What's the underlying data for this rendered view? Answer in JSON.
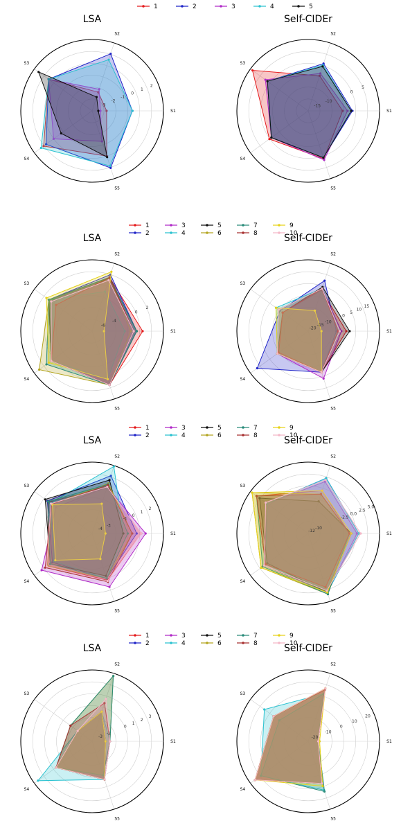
{
  "colors": [
    "#e41a1c",
    "#1f24c8",
    "#b12bc8",
    "#2bc2d0",
    "#111111",
    "#b3a520",
    "#2a8c7a",
    "#a83232",
    "#e6d21a",
    "#f4b8c8"
  ],
  "rows": [
    {
      "legend": [
        "1",
        "2",
        "3",
        "4",
        "5"
      ],
      "panels": [
        {
          "title": "LSA",
          "rticks": [
            "-3",
            "-2",
            "-1",
            "0",
            "1",
            "2"
          ],
          "rmin": -4.2,
          "rmax": 2.7,
          "center_label": "-4",
          "fill": true
        },
        {
          "title": "Self-CIDEr",
          "rticks": [
            "-15",
            "-10",
            "0",
            "5"
          ],
          "rmin": -19,
          "rmax": 10,
          "center_label": "",
          "fill": true
        }
      ]
    },
    {
      "legend": [
        "1",
        "2",
        "3",
        "4",
        "5",
        "6",
        "7",
        "8",
        "9",
        "10"
      ],
      "panels": [
        {
          "title": "LSA",
          "rticks": [
            "-6",
            "-4",
            "0",
            "2"
          ],
          "rmin": -8,
          "rmax": 4,
          "center_label": "",
          "fill": true
        },
        {
          "title": "Self-CIDEr",
          "rticks": [
            "-20",
            "-15",
            "-10",
            "0",
            "5",
            "10",
            "15"
          ],
          "rmin": -23,
          "rmax": 20,
          "center_label": "",
          "fill": true
        }
      ]
    },
    {
      "legend": [
        "1",
        "2",
        "3",
        "4",
        "5",
        "6",
        "7",
        "8",
        "9",
        "10"
      ],
      "panels": [
        {
          "title": "LSA",
          "rticks": [
            "-4",
            "-3",
            "-1",
            "0",
            "1",
            "2"
          ],
          "rmin": -5,
          "rmax": 3,
          "center_label": "",
          "fill": true
        },
        {
          "title": "Self-CIDEr",
          "rticks": [
            "-12",
            "-10",
            "-2.5",
            "0.0",
            "2.5",
            "5.0"
          ],
          "rmin": -13,
          "rmax": 6,
          "center_label": "",
          "fill": true
        }
      ]
    },
    {
      "legend": [
        "1",
        "2",
        "3",
        "4",
        "5",
        "6",
        "7",
        "8",
        "9",
        "10"
      ],
      "panels": [
        {
          "title": "LSA",
          "rticks": [
            "-3",
            "-2",
            "0",
            "1",
            "2",
            "3"
          ],
          "rmin": -4,
          "rmax": 4,
          "center_label": "",
          "fill": true
        },
        {
          "title": "Self-CIDEr",
          "rticks": [
            "-20",
            "-10",
            "0",
            "10",
            "20"
          ],
          "rmin": -25,
          "rmax": 25,
          "center_label": "",
          "fill": true
        }
      ]
    }
  ],
  "categories": [
    "S1",
    "S2",
    "S3",
    "S4",
    "S5"
  ],
  "chart_data": [
    {
      "type": "radar",
      "title": "LSA",
      "categories": [
        "S1",
        "S2",
        "S3",
        "S4",
        "S5"
      ],
      "rlim": [
        -4.2,
        2.7
      ],
      "series": [
        {
          "name": "1",
          "values": [
            -2.8,
            -2.3,
            1.0,
            1.6,
            0.4
          ]
        },
        {
          "name": "2",
          "values": [
            -0.3,
            1.6,
            1.0,
            1.3,
            1.6
          ]
        },
        {
          "name": "3",
          "values": [
            -3.4,
            -2.0,
            1.0,
            0.4,
            -1.1
          ]
        },
        {
          "name": "4",
          "values": [
            -0.3,
            1.0,
            1.0,
            1.9,
            1.4
          ]
        },
        {
          "name": "5",
          "values": [
            -3.6,
            -2.8,
            2.2,
            -0.5,
            0.5
          ]
        }
      ]
    },
    {
      "type": "radar",
      "title": "Self-CIDEr",
      "categories": [
        "S1",
        "S2",
        "S3",
        "S4",
        "S5"
      ],
      "rlim": [
        -19,
        10
      ],
      "series": [
        {
          "name": "1",
          "values": [
            -5,
            -4,
            9,
            0.5,
            1.5
          ]
        },
        {
          "name": "2",
          "values": [
            -1,
            1.2,
            1.5,
            -0.5,
            1.0
          ]
        },
        {
          "name": "3",
          "values": [
            -3,
            -3,
            2.5,
            -0.5,
            2.0
          ]
        },
        {
          "name": "4",
          "values": [
            -1.5,
            0.5,
            1.5,
            -0.5,
            1.0
          ]
        },
        {
          "name": "5",
          "values": [
            -1.5,
            0,
            1.5,
            -0.5,
            1.0
          ]
        }
      ]
    },
    {
      "type": "radar",
      "title": "LSA",
      "categories": [
        "S1",
        "S2",
        "S3",
        "S4",
        "S5"
      ],
      "rlim": [
        -8,
        4
      ],
      "series": [
        {
          "name": "1",
          "values": [
            0.5,
            1.5,
            1.0,
            0.5,
            1.5
          ]
        },
        {
          "name": "2",
          "values": [
            -0.5,
            2.0,
            1.0,
            0.5,
            1.5
          ]
        },
        {
          "name": "3",
          "values": [
            -1.5,
            1.5,
            1.0,
            0.5,
            1.5
          ]
        },
        {
          "name": "4",
          "values": [
            -2.5,
            -1.0,
            1.0,
            0.5,
            0.5
          ]
        },
        {
          "name": "5",
          "values": [
            -0.5,
            1.5,
            1.0,
            0.5,
            1.5
          ]
        },
        {
          "name": "6",
          "values": [
            -1.5,
            1.5,
            1.0,
            3.0,
            1.5
          ]
        },
        {
          "name": "7",
          "values": [
            -0.5,
            1.5,
            1.0,
            1.5,
            1.5
          ]
        },
        {
          "name": "8",
          "values": [
            -1.0,
            1.5,
            -0.5,
            0.5,
            1.5
          ]
        },
        {
          "name": "9",
          "values": [
            -6.0,
            2.5,
            1.5,
            1.0,
            0.5
          ]
        },
        {
          "name": "10",
          "values": [
            -1.0,
            1.0,
            0.5,
            0.5,
            1.5
          ]
        }
      ]
    },
    {
      "type": "radar",
      "title": "Self-CIDEr",
      "categories": [
        "S1",
        "S2",
        "S3",
        "S4",
        "S5"
      ],
      "rlim": [
        -23,
        20
      ],
      "series": [
        {
          "name": "1",
          "values": [
            0,
            3,
            -4,
            -1,
            3
          ]
        },
        {
          "name": "2",
          "values": [
            -6,
            9,
            -2,
            15,
            3
          ]
        },
        {
          "name": "3",
          "values": [
            -3,
            4,
            -1,
            0,
            7
          ]
        },
        {
          "name": "4",
          "values": [
            -4,
            4,
            1,
            0,
            3
          ]
        },
        {
          "name": "5",
          "values": [
            2,
            5,
            -4,
            0,
            3
          ]
        },
        {
          "name": "6",
          "values": [
            -5,
            4,
            -1,
            0,
            3
          ]
        },
        {
          "name": "7",
          "values": [
            -4,
            4,
            -1,
            0,
            3
          ]
        },
        {
          "name": "8",
          "values": [
            -5,
            4,
            -4,
            -1,
            3
          ]
        },
        {
          "name": "9",
          "values": [
            -15,
            -10,
            1,
            0,
            3
          ]
        },
        {
          "name": "10",
          "values": [
            -4,
            4,
            -1,
            0,
            3
          ]
        }
      ]
    },
    {
      "type": "radar",
      "title": "LSA",
      "categories": [
        "S1",
        "S2",
        "S3",
        "S4",
        "S5"
      ],
      "rlim": [
        -5,
        3
      ],
      "series": [
        {
          "name": "1",
          "values": [
            0.5,
            0.5,
            1.0,
            1.2,
            0.5
          ]
        },
        {
          "name": "2",
          "values": [
            0.0,
            1.8,
            1.2,
            0.5,
            0.3
          ]
        },
        {
          "name": "3",
          "values": [
            1.0,
            0.5,
            0.0,
            2.0,
            1.3
          ]
        },
        {
          "name": "4",
          "values": [
            -1.5,
            2.9,
            0.8,
            0.3,
            0.3
          ]
        },
        {
          "name": "5",
          "values": [
            -1.5,
            1.3,
            1.5,
            0.8,
            0.0
          ]
        },
        {
          "name": "6",
          "values": [
            -0.5,
            0.9,
            0.6,
            1.2,
            0.3
          ]
        },
        {
          "name": "7",
          "values": [
            -1.0,
            0.8,
            1.1,
            0.8,
            0.3
          ]
        },
        {
          "name": "8",
          "values": [
            -0.5,
            0.7,
            0.6,
            1.5,
            0.7
          ]
        },
        {
          "name": "9",
          "values": [
            -3.5,
            -1.5,
            0.5,
            0.1,
            -2.0
          ]
        },
        {
          "name": "10",
          "values": [
            0.5,
            0.5,
            0.7,
            1.3,
            0.6
          ]
        }
      ]
    },
    {
      "type": "radar",
      "title": "Self-CIDEr",
      "categories": [
        "S1",
        "S2",
        "S3",
        "S4",
        "S5"
      ],
      "rlim": [
        -13,
        6
      ],
      "series": [
        {
          "name": "1",
          "values": [
            -2.0,
            -1.0,
            4.0,
            1.0,
            3.5
          ]
        },
        {
          "name": "2",
          "values": [
            0.5,
            2.5,
            0.5,
            1.0,
            3.5
          ]
        },
        {
          "name": "3",
          "values": [
            0.0,
            1.5,
            0.5,
            1.5,
            3.5
          ]
        },
        {
          "name": "4",
          "values": [
            0.5,
            2.5,
            0.5,
            1.0,
            3.5
          ]
        },
        {
          "name": "5",
          "values": [
            -1.5,
            -4.0,
            3.0,
            0.5,
            3.5
          ]
        },
        {
          "name": "6",
          "values": [
            -2.0,
            -2.0,
            5.5,
            2.5,
            4.0
          ]
        },
        {
          "name": "7",
          "values": [
            -2.0,
            -2.0,
            4.0,
            2.0,
            4.0
          ]
        },
        {
          "name": "8",
          "values": [
            -2.0,
            -2.0,
            4.0,
            1.0,
            2.0
          ]
        },
        {
          "name": "9",
          "values": [
            -1.5,
            -1.0,
            5.5,
            2.5,
            3.5
          ]
        },
        {
          "name": "10",
          "values": [
            1.0,
            2.0,
            1.0,
            1.5,
            3.0
          ]
        }
      ]
    },
    {
      "type": "radar",
      "title": "LSA",
      "categories": [
        "S1",
        "S2",
        "S3",
        "S4",
        "S5"
      ],
      "rlim": [
        -4,
        4
      ],
      "series": [
        {
          "name": "1",
          "values": [
            -2.5,
            -0.5,
            -2.0,
            1.0,
            0.5
          ]
        },
        {
          "name": "2",
          "values": [
            -2.5,
            -0.5,
            -2.0,
            1.0,
            0.5
          ]
        },
        {
          "name": "3",
          "values": [
            -2.5,
            -0.5,
            -2.0,
            1.0,
            0.5
          ]
        },
        {
          "name": "4",
          "values": [
            -2.0,
            -0.5,
            -2.0,
            3.5,
            0.5
          ]
        },
        {
          "name": "5",
          "values": [
            -2.5,
            -0.5,
            -2.0,
            1.0,
            0.5
          ]
        },
        {
          "name": "6",
          "values": [
            -2.0,
            3.7,
            -1.0,
            1.0,
            0.0
          ]
        },
        {
          "name": "7",
          "values": [
            -2.0,
            3.7,
            -1.0,
            1.0,
            0.0
          ]
        },
        {
          "name": "8",
          "values": [
            -2.0,
            0.5,
            -1.0,
            1.0,
            0.5
          ]
        },
        {
          "name": "9",
          "values": [
            -2.5,
            -0.5,
            -2.0,
            1.0,
            0.5
          ]
        },
        {
          "name": "10",
          "values": [
            -2.0,
            1.0,
            -2.0,
            1.0,
            0.5
          ]
        }
      ]
    },
    {
      "type": "radar",
      "title": "Self-CIDEr",
      "categories": [
        "S1",
        "S2",
        "S3",
        "S4",
        "S5"
      ],
      "rlim": [
        -25,
        25
      ],
      "series": [
        {
          "name": "1",
          "values": [
            -18,
            13,
            5,
            21,
            6
          ]
        },
        {
          "name": "2",
          "values": [
            -18,
            13,
            5,
            21,
            6
          ]
        },
        {
          "name": "3",
          "values": [
            -18,
            13,
            5,
            21,
            6
          ]
        },
        {
          "name": "4",
          "values": [
            -18,
            10,
            13,
            16,
            11
          ]
        },
        {
          "name": "5",
          "values": [
            -18,
            13,
            5,
            21,
            6
          ]
        },
        {
          "name": "6",
          "values": [
            -18,
            14,
            5,
            21,
            6
          ]
        },
        {
          "name": "7",
          "values": [
            -18,
            10,
            0,
            16,
            12
          ]
        },
        {
          "name": "8",
          "values": [
            -18,
            13,
            5,
            21,
            6
          ]
        },
        {
          "name": "9",
          "values": [
            -17,
            14,
            5,
            21,
            8
          ]
        },
        {
          "name": "10",
          "values": [
            -18,
            14,
            5,
            21,
            6
          ]
        }
      ]
    }
  ]
}
